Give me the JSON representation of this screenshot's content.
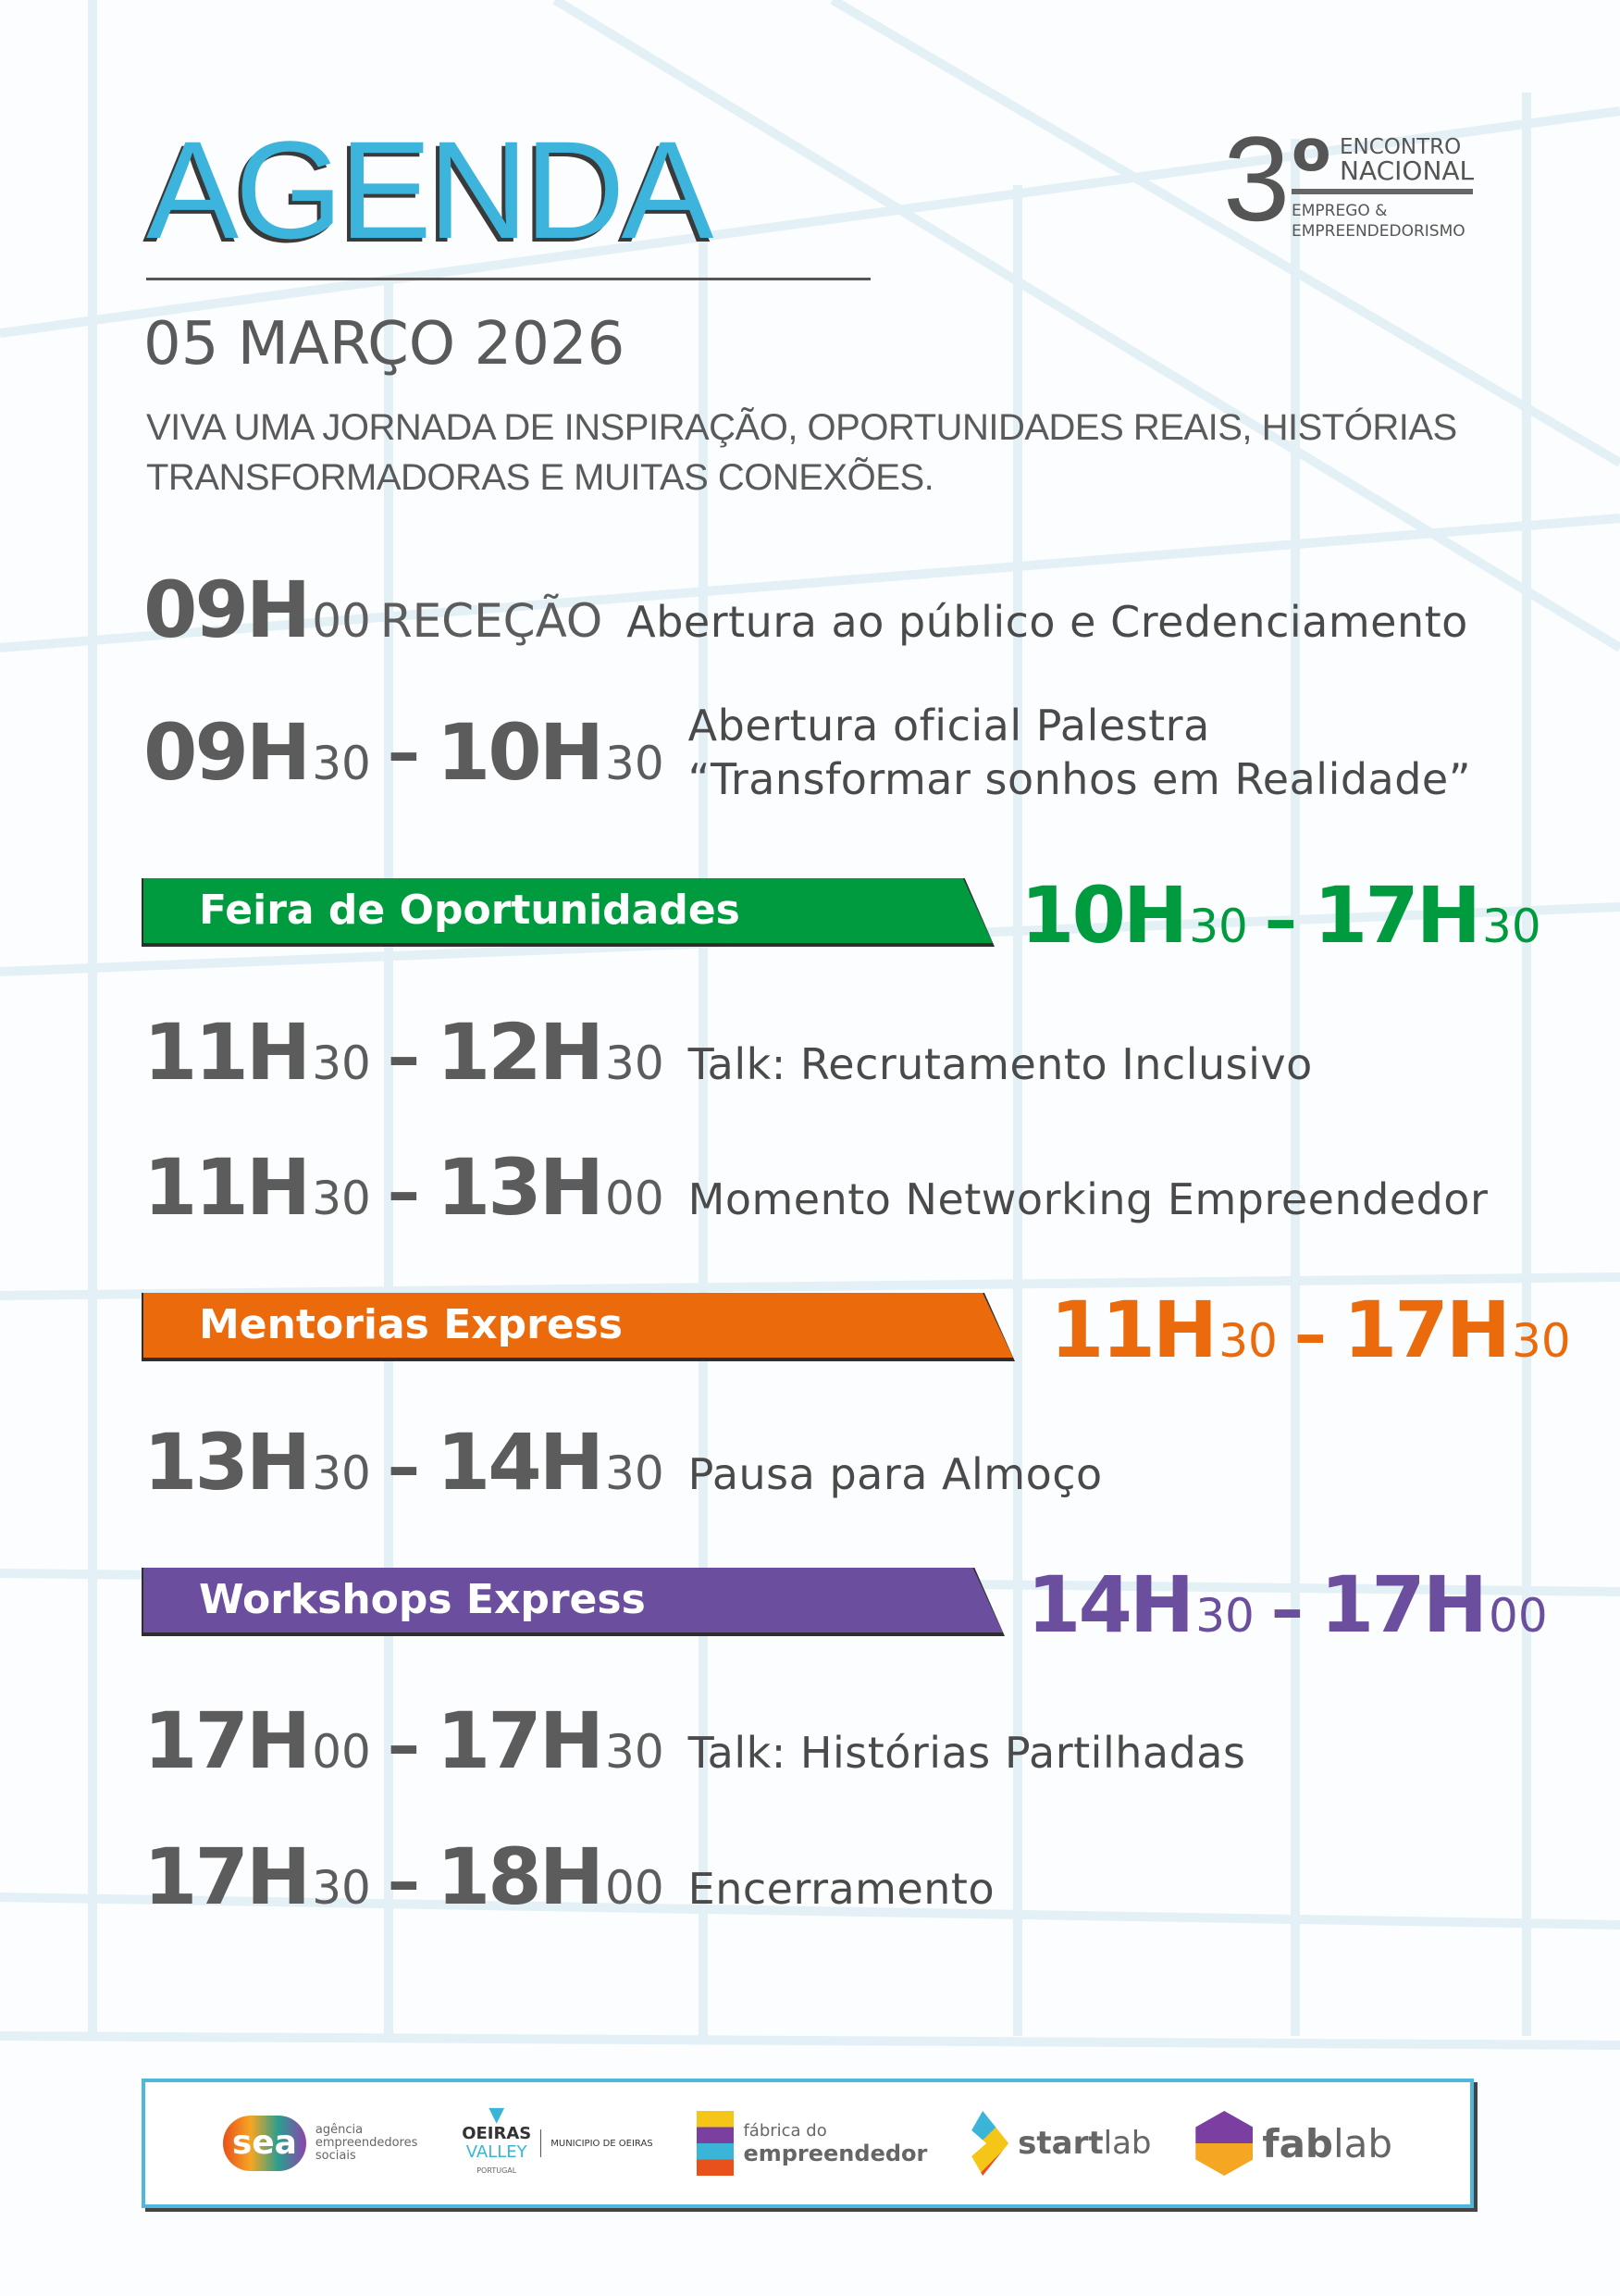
{
  "header": {
    "title": "AGENDA",
    "date": "05 MARÇO 2026",
    "subtitle_line1": "VIVA UMA JORNADA DE INSPIRAÇÃO, OPORTUNIDADES REAIS, HISTÓRIAS",
    "subtitle_line2": "TRANSFORMADORAS E MUITAS CONEXÕES."
  },
  "event_logo": {
    "number": "3",
    "ordinal": "o",
    "line1": "ENCONTRO",
    "line2": "NACIONAL",
    "line3": "EMPREGO &",
    "line4": "EMPREENDEDORISMO"
  },
  "schedule": [
    {
      "h1": "09H",
      "m1": "00",
      "kind": "RECEÇÃO",
      "desc": "Abertura ao público e Credenciamento"
    },
    {
      "h1": "09H",
      "m1": "30",
      "h2": "10H",
      "m2": "30",
      "desc1": "Abertura oficial Palestra",
      "desc2": "“Transformar sonhos em Realidade”"
    },
    {
      "h1": "11H",
      "m1": "30",
      "h2": "12H",
      "m2": "30",
      "desc": "Talk: Recrutamento Inclusivo"
    },
    {
      "h1": "11H",
      "m1": "30",
      "h2": "13H",
      "m2": "00",
      "desc": "Momento Networking Empreendedor"
    },
    {
      "h1": "13H",
      "m1": "30",
      "h2": "14H",
      "m2": "30",
      "desc": "Pausa para Almoço"
    },
    {
      "h1": "17H",
      "m1": "00",
      "h2": "17H",
      "m2": "30",
      "desc": "Talk: Histórias Partilhadas"
    },
    {
      "h1": "17H",
      "m1": "30",
      "h2": "18H",
      "m2": "00",
      "desc": "Encerramento"
    }
  ],
  "bands": [
    {
      "label": "Feira de Oportunidades",
      "h1": "10H",
      "m1": "30",
      "h2": "17H",
      "m2": "30",
      "color": "#009a3f"
    },
    {
      "label": "Mentorias Express",
      "h1": "11H",
      "m1": "30",
      "h2": "17H",
      "m2": "30",
      "color": "#ea6a0c"
    },
    {
      "label": "Workshops Express",
      "h1": "14H",
      "m1": "30",
      "h2": "17H",
      "m2": "00",
      "color": "#6b4f9e"
    }
  ],
  "dash": "–",
  "partners": {
    "sea": {
      "mark": "sea",
      "text1": "agência",
      "text2": "empreendedores",
      "text3": "sociais"
    },
    "oeiras": {
      "line1": "OEIRAS",
      "line2": "VALLEY",
      "line3": "PORTUGAL",
      "municipio": "MUNICIPIO DE OEIRAS"
    },
    "fabrica": {
      "line1": "fábrica do",
      "line2": "empreendedor"
    },
    "startlab": {
      "bold": "start",
      "light": "lab"
    },
    "fablab": {
      "bold": "fab",
      "light": "lab"
    }
  }
}
